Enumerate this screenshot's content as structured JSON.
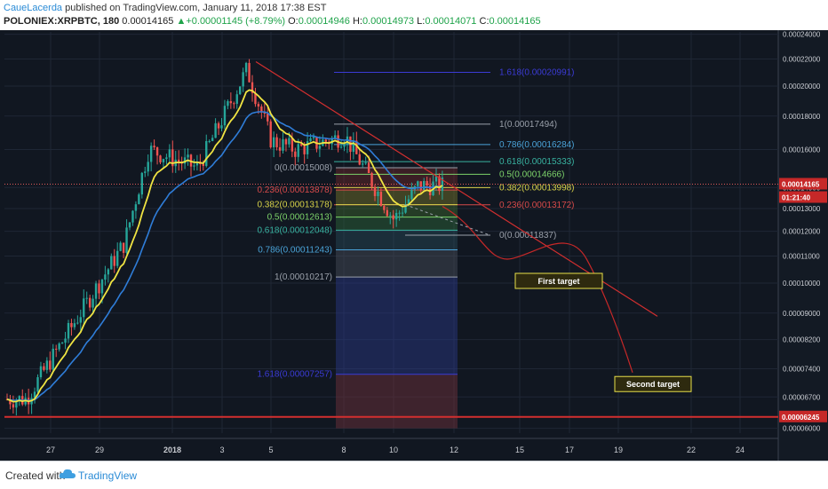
{
  "header": {
    "author": "CaueLacerda",
    "published": " published on TradingView.com, January 11, 2018 17:38 EST",
    "symbol": "POLONIEX:XRPBTC, 180",
    "last": "0.00014165",
    "change": "+0.00001145 (+8.79%)",
    "o_label": "O:",
    "o": "0.00014946",
    "h_label": "H:",
    "h": "0.00014973",
    "l_label": "L:",
    "l": "0.00014071",
    "c_label": "C:",
    "c": "0.00014165"
  },
  "footer": {
    "created": "Created with",
    "brand": "TradingView"
  },
  "colors": {
    "background": "#111721",
    "up": "#26a69a",
    "down": "#ef5350",
    "ema_fast": "#f0e442",
    "ema_slow": "#2f7dd8",
    "trendline": "#d32f2f"
  },
  "chart_data": {
    "type": "candlestick",
    "y_scale": "log",
    "ylim": [
      5.9e-05,
      0.000242
    ],
    "y_ticks": [
      "0.00024000",
      "0.00022000",
      "0.00020000",
      "0.00018000",
      "0.00016000",
      "0.00014000",
      "0.00013000",
      "0.00012000",
      "0.00011000",
      "0.00010000",
      "0.00009000",
      "0.00008200",
      "0.00007400",
      "0.00006700",
      "0.00006000"
    ],
    "x_ticks": [
      "27",
      "29",
      "2018",
      "3",
      "5",
      "8",
      "10",
      "12",
      "15",
      "17",
      "19",
      "22",
      "24"
    ],
    "price_tags": [
      {
        "value": "0.00014165",
        "style": "last"
      },
      {
        "value": "01:21:40",
        "style": "countdown"
      },
      {
        "value": "0.00006245",
        "style": "support"
      }
    ],
    "price_anchors": [
      {
        "date": "Dec 26",
        "price": 6.65e-05
      },
      {
        "date": "Dec 30",
        "price": 0.000115
      },
      {
        "date": "Dec 31",
        "price": 0.00016
      },
      {
        "date": "Jan 2",
        "price": 0.00015
      },
      {
        "date": "Jan 4",
        "price": 0.000212
      },
      {
        "date": "Jan 5",
        "price": 0.000165
      },
      {
        "date": "Jan 6",
        "price": 0.00016
      },
      {
        "date": "Jan 8",
        "price": 0.000168
      },
      {
        "date": "Jan 10",
        "price": 0.000125
      },
      {
        "date": "Jan 11",
        "price": 0.000141
      }
    ],
    "fib_retracement_upper": [
      {
        "label": "1.618(0.00020991)",
        "value": 0.00020991
      },
      {
        "label": "1(0.00017494)",
        "value": 0.00017494
      },
      {
        "label": "0.786(0.00016284)",
        "value": 0.00016284
      },
      {
        "label": "0.618(0.00015333)",
        "value": 0.00015333
      },
      {
        "label": "0.5(0.00014666)",
        "value": 0.00014666
      },
      {
        "label": "0.382(0.00013998)",
        "value": 0.00013998
      },
      {
        "label": "0.236(0.00013172)",
        "value": 0.00013172
      },
      {
        "label": "0(0.00011837)",
        "value": 0.00011837
      }
    ],
    "fib_retracement_lower": [
      {
        "label": "0(0.00015008)",
        "value": 0.00015008
      },
      {
        "label": "0.236(0.00013878)",
        "value": 0.00013878
      },
      {
        "label": "0.382(0.00013178)",
        "value": 0.00013178
      },
      {
        "label": "0.5(0.00012613)",
        "value": 0.00012613
      },
      {
        "label": "0.618(0.00012048)",
        "value": 0.00012048
      },
      {
        "label": "0.786(0.00011243)",
        "value": 0.00011243
      },
      {
        "label": "1(0.00010217)",
        "value": 0.00010217
      },
      {
        "label": "1.618(0.00007257)",
        "value": 7.257e-05
      }
    ],
    "annotations": [
      {
        "text": "First target"
      },
      {
        "text": "Second target"
      }
    ]
  }
}
